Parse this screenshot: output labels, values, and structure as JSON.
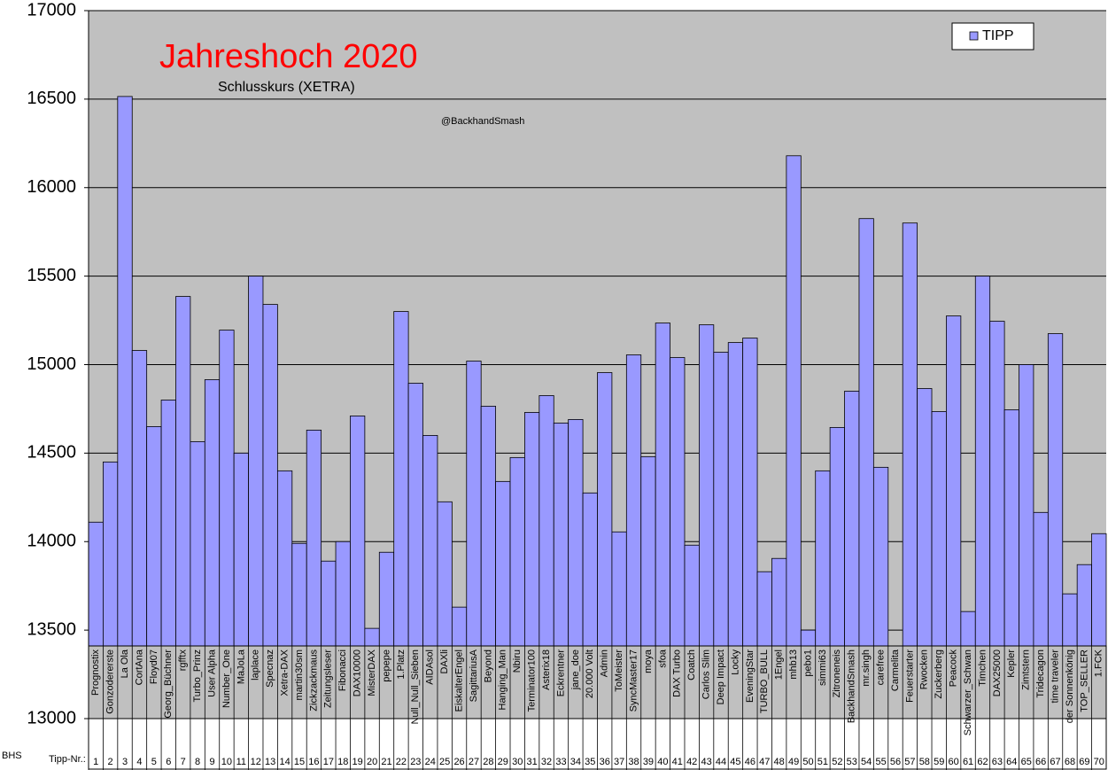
{
  "chart_data": {
    "type": "bar",
    "title": "Jahreshoch 2020",
    "subtitle": "Schlusskurs (XETRA)",
    "annotation": "@BackhandSmash",
    "categories": [
      "Prognostix",
      "Gonzodererste",
      "La Ola",
      "CortAna",
      "Floyd07",
      "Georg_Büchner",
      "rgfftx",
      "Turbo_Prinz",
      "User Alpha",
      "Number_One",
      "MaJoLa",
      "laplace",
      "Specnaz",
      "Xetra-DAX",
      "martin30sm",
      "Zickzackmaus",
      "Zeitungsleser",
      "Fibonacci",
      "DAX10000",
      "MisterDAX",
      "pepepe",
      "1.Platz",
      "Null_Null_Sieben",
      "AIDAsol",
      "DAXli",
      "EiskalterEngel",
      "SagittariusA",
      "Beyond",
      "Hanging_Man",
      "Nbiru",
      "Terminator100",
      "Asterix18",
      "Eckrentner",
      "jane_doe",
      "20.000 Volt",
      "Admin",
      "ToMeister",
      "SyncMaster17",
      "moya",
      "sfoa",
      "DAX Turbo",
      "Coatch",
      "Carlos Slim",
      "Deep Impact",
      "Locky",
      "EveningStar",
      "TURBO_BULL",
      "1Engel",
      "mhb13",
      "pebo1",
      "simmi63",
      "Zitroneneis",
      "BackhandSmash",
      "mr.singh",
      "carefree",
      "Carmelita",
      "Feuerstarter",
      "Rwocken",
      "Zuckerberg",
      "Peacock",
      "Schwarzer_Schwan",
      "Timchen",
      "DAX25000",
      "Kepler",
      "Zimtstern",
      "Tridecagon",
      "time traveler",
      "der Sonnenkönig",
      "TOP_SELLER",
      "1.FCK"
    ],
    "series": [
      {
        "name": "TIPP",
        "color": "#9999ff",
        "values": [
          14110,
          14450,
          16515,
          15080,
          14650,
          14800,
          15385,
          14565,
          14915,
          15195,
          14500,
          15500,
          15340,
          14400,
          13990,
          14630,
          13890,
          14000,
          14710,
          13510,
          13940,
          15300,
          14895,
          14600,
          14225,
          13630,
          15020,
          14765,
          14340,
          14475,
          14730,
          14825,
          14670,
          14690,
          14275,
          14955,
          14055,
          15055,
          14480,
          15235,
          15040,
          13980,
          15225,
          15070,
          15125,
          15150,
          13830,
          13905,
          16180,
          13500,
          14400,
          14645,
          14850,
          15825,
          14420,
          13400,
          15800,
          14865,
          14735,
          15275,
          13605,
          15500,
          15245,
          14745,
          15000,
          14165,
          15175,
          13705,
          13870,
          14045
        ]
      }
    ],
    "table_labels": [
      "BHS",
      "Tipp-Nr.:"
    ],
    "tipp_numbers": [
      1,
      2,
      3,
      4,
      5,
      6,
      7,
      8,
      9,
      10,
      11,
      12,
      13,
      14,
      15,
      16,
      17,
      18,
      19,
      20,
      21,
      22,
      23,
      24,
      25,
      26,
      27,
      28,
      29,
      30,
      31,
      32,
      33,
      34,
      35,
      36,
      37,
      38,
      39,
      40,
      41,
      42,
      43,
      44,
      45,
      46,
      47,
      48,
      49,
      50,
      51,
      52,
      53,
      54,
      55,
      56,
      57,
      58,
      59,
      60,
      61,
      62,
      63,
      64,
      65,
      66,
      67,
      68,
      69,
      70
    ],
    "ylim": [
      13000,
      17000
    ],
    "yticks": [
      13000,
      13500,
      14000,
      14500,
      15000,
      15500,
      16000,
      16500,
      17000
    ],
    "grid": true,
    "legend": "top-right"
  }
}
